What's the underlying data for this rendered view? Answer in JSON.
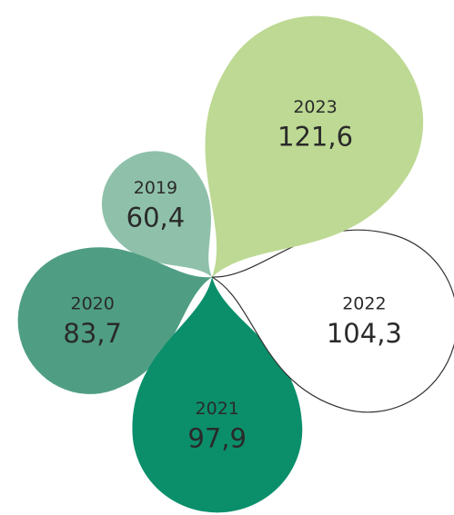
{
  "chart_data": {
    "type": "petal",
    "categories": [
      "2019",
      "2020",
      "2021",
      "2022",
      "2023"
    ],
    "values": [
      60.4,
      83.7,
      97.9,
      104.3,
      121.6
    ],
    "value_labels": [
      "60,4",
      "83,7",
      "97,9",
      "104,3",
      "121,6"
    ],
    "colors": [
      "#8fc1aa",
      "#4f9e84",
      "#0b8f6b",
      "#ffffff",
      "#bdd993"
    ]
  }
}
